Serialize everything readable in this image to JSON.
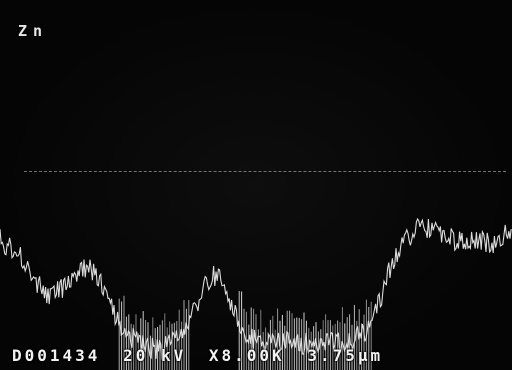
{
  "micrograph": {
    "element_label": "Zn",
    "image_id": "D001434",
    "voltage": "20 kV",
    "magnification": "X8.00K",
    "scale": "3.75μm"
  },
  "colors": {
    "background": "#050505",
    "trace": "#e8e8e8",
    "baseline": "#bdbdbd",
    "text": "#f2f2f2"
  }
}
